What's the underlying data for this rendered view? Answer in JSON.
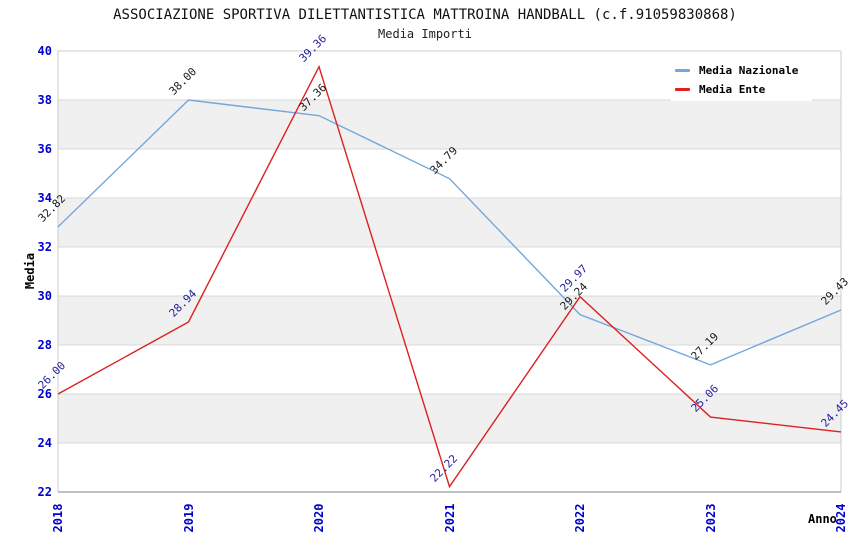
{
  "chart_data": {
    "type": "line",
    "title": "ASSOCIAZIONE SPORTIVA DILETTANTISTICA MATTROINA HANDBALL (c.f.91059830868)",
    "subtitle": "Media Importi",
    "xlabel": "Anno",
    "ylabel": "Media",
    "x": [
      2018,
      2019,
      2020,
      2021,
      2022,
      2023,
      2024
    ],
    "ylim": [
      22,
      40
    ],
    "ytick_step": 2,
    "grid": true,
    "legend_position": "top-right",
    "series": [
      {
        "name": "Media Nazionale",
        "color": "#74A7DB",
        "label_color": "#1a1a1a",
        "values": [
          32.82,
          38.0,
          37.36,
          34.79,
          29.24,
          27.19,
          29.43
        ]
      },
      {
        "name": "Media Ente",
        "color": "#DD2020",
        "label_color": "#1F1F9C",
        "values": [
          26.0,
          28.94,
          39.36,
          22.22,
          29.97,
          25.06,
          24.45
        ]
      }
    ],
    "colors": {
      "tick_label": "#0000CD",
      "axis_label": "#000000",
      "band_gray": "#f0f0f0",
      "band_white": "#ffffff",
      "grid_line": "#d9d9d9",
      "plot_border": "#cccccc",
      "axis_line": "#808080",
      "legend_background": "#ffffff"
    }
  }
}
